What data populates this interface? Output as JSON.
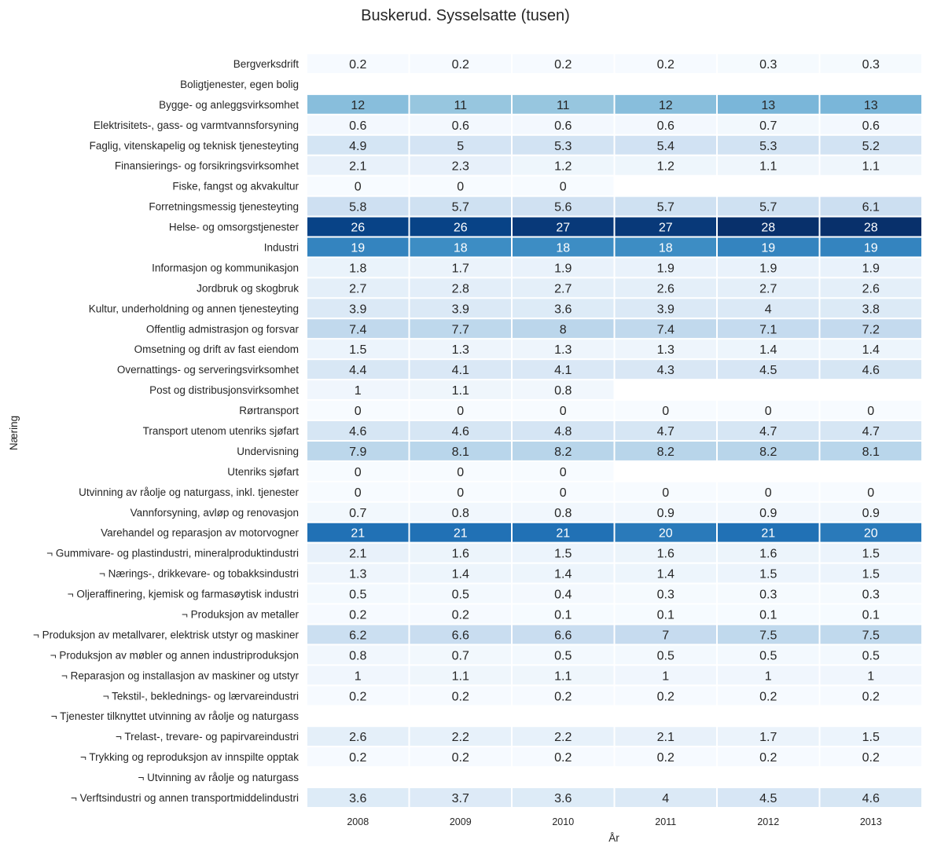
{
  "chart_data": {
    "type": "heatmap",
    "title": "Buskerud. Sysselsatte (tusen)",
    "xlabel": "År",
    "ylabel": "Næring",
    "colormap": "Blues",
    "value_range": [
      0,
      28
    ],
    "x": [
      "2008",
      "2009",
      "2010",
      "2011",
      "2012",
      "2013"
    ],
    "categories": [
      "Bergverksdrift",
      "Boligtjenester, egen bolig",
      "Bygge- og anleggsvirksomhet",
      "Elektrisitets-, gass- og varmtvannsforsyning",
      "Faglig, vitenskapelig og teknisk tjenesteyting",
      "Finansierings- og forsikringsvirksomhet",
      "Fiske, fangst og akvakultur",
      "Forretningsmessig tjenesteyting",
      "Helse- og omsorgstjenester",
      "Industri",
      "Informasjon og kommunikasjon",
      "Jordbruk og skogbruk",
      "Kultur, underholdning og annen tjenesteyting",
      "Offentlig admistrasjon og forsvar",
      "Omsetning og drift av fast eiendom",
      "Overnattings- og serveringsvirksomhet",
      "Post og distribusjonsvirksomhet",
      "Rørtransport",
      "Transport utenom utenriks sjøfart",
      "Undervisning",
      "Utenriks sjøfart",
      "Utvinning av råolje og naturgass, inkl. tjenester",
      "Vannforsyning, avløp og renovasjon",
      "Varehandel og reparasjon av motorvogner",
      "¬ Gummivare- og plastindustri, mineralproduktindustri",
      "¬ Nærings-, drikkevare- og tobakksindustri",
      "¬ Oljeraffinering, kjemisk og farmasøytisk industri",
      "¬ Produksjon av metaller",
      "¬ Produksjon av metallvarer, elektrisk utstyr og maskiner",
      "¬ Produksjon av møbler og annen industriproduksjon",
      "¬ Reparasjon og installasjon av maskiner og utstyr",
      "¬ Tekstil-, beklednings- og lærvareindustri",
      "¬ Tjenester tilknyttet utvinning av råolje og naturgass",
      "¬ Trelast-, trevare- og papirvareindustri",
      "¬ Trykking og reproduksjon av innspilte opptak",
      "¬ Utvinning av råolje og naturgass",
      "¬ Verftsindustri og annen transportmiddelindustri"
    ],
    "values": [
      [
        0.2,
        0.2,
        0.2,
        0.2,
        0.3,
        0.3
      ],
      [
        null,
        null,
        null,
        null,
        null,
        null
      ],
      [
        12,
        11,
        11,
        12,
        13,
        13
      ],
      [
        0.6,
        0.6,
        0.6,
        0.6,
        0.7,
        0.6
      ],
      [
        4.9,
        5,
        5.3,
        5.4,
        5.3,
        5.2
      ],
      [
        2.1,
        2.3,
        1.2,
        1.2,
        1.1,
        1.1
      ],
      [
        0,
        0,
        0,
        null,
        null,
        null
      ],
      [
        5.8,
        5.7,
        5.6,
        5.7,
        5.7,
        6.1
      ],
      [
        26,
        26,
        27,
        27,
        28,
        28
      ],
      [
        19,
        18,
        18,
        18,
        19,
        19
      ],
      [
        1.8,
        1.7,
        1.9,
        1.9,
        1.9,
        1.9
      ],
      [
        2.7,
        2.8,
        2.7,
        2.6,
        2.7,
        2.6
      ],
      [
        3.9,
        3.9,
        3.6,
        3.9,
        4,
        3.8
      ],
      [
        7.4,
        7.7,
        8,
        7.4,
        7.1,
        7.2
      ],
      [
        1.5,
        1.3,
        1.3,
        1.3,
        1.4,
        1.4
      ],
      [
        4.4,
        4.1,
        4.1,
        4.3,
        4.5,
        4.6
      ],
      [
        1,
        1.1,
        0.8,
        null,
        null,
        null
      ],
      [
        0,
        0,
        0,
        0,
        0,
        0
      ],
      [
        4.6,
        4.6,
        4.8,
        4.7,
        4.7,
        4.7
      ],
      [
        7.9,
        8.1,
        8.2,
        8.2,
        8.2,
        8.1
      ],
      [
        0,
        0,
        0,
        null,
        null,
        null
      ],
      [
        0,
        0,
        0,
        0,
        0,
        0
      ],
      [
        0.7,
        0.8,
        0.8,
        0.9,
        0.9,
        0.9
      ],
      [
        21,
        21,
        21,
        20,
        21,
        20
      ],
      [
        2.1,
        1.6,
        1.5,
        1.6,
        1.6,
        1.5
      ],
      [
        1.3,
        1.4,
        1.4,
        1.4,
        1.5,
        1.5
      ],
      [
        0.5,
        0.5,
        0.4,
        0.3,
        0.3,
        0.3
      ],
      [
        0.2,
        0.2,
        0.1,
        0.1,
        0.1,
        0.1
      ],
      [
        6.2,
        6.6,
        6.6,
        7,
        7.5,
        7.5
      ],
      [
        0.8,
        0.7,
        0.5,
        0.5,
        0.5,
        0.5
      ],
      [
        1,
        1.1,
        1.1,
        1,
        1,
        1
      ],
      [
        0.2,
        0.2,
        0.2,
        0.2,
        0.2,
        0.2
      ],
      [
        null,
        null,
        null,
        null,
        null,
        null
      ],
      [
        2.6,
        2.2,
        2.2,
        2.1,
        1.7,
        1.5
      ],
      [
        0.2,
        0.2,
        0.2,
        0.2,
        0.2,
        0.2
      ],
      [
        null,
        null,
        null,
        null,
        null,
        null
      ],
      [
        3.6,
        3.7,
        3.6,
        4,
        4.5,
        4.6
      ]
    ]
  }
}
